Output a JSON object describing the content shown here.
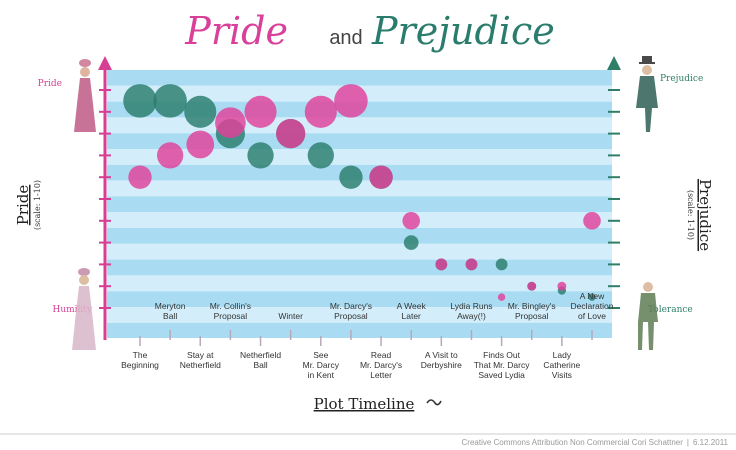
{
  "title": {
    "word1": "Pride",
    "connector": "and",
    "word2": "Prejudice"
  },
  "axes": {
    "left_label": "Pride",
    "left_sublabel": "(scale: 1-10)",
    "right_label": "Prejudice",
    "right_sublabel": "(scale: 1-10)",
    "left_top": "Pride",
    "left_bottom": "Humility",
    "right_top": "Prejudice",
    "right_bottom": "Tolerance",
    "x_label": "Plot Timeline"
  },
  "footer": {
    "credit": "Creative Commons Attribution Non Commercial Cori Schattner",
    "separator": "|",
    "date": "6.12.2011"
  },
  "colors": {
    "pride": "#e0409a",
    "prejudice": "#2a7d6c",
    "band_dark": "#a9dcf3",
    "band_light": "#d3eefa",
    "axis_left": "#d63f94",
    "axis_right": "#2f7f68"
  },
  "chart_data": {
    "type": "scatter",
    "title": "Pride and Prejudice",
    "xlabel": "Plot Timeline",
    "ylabel_left": "Pride (scale: 1-10)",
    "ylabel_right": "Prejudice (scale: 1-10)",
    "ylim": [
      0,
      10
    ],
    "legend": "none",
    "categories": [
      {
        "label": [
          "The",
          "Beginning"
        ],
        "row": "bottom"
      },
      {
        "label": [
          "Meryton",
          "Ball"
        ],
        "row": "top"
      },
      {
        "label": [
          "Stay at",
          "Netherfield"
        ],
        "row": "bottom"
      },
      {
        "label": [
          "Mr. Collin's",
          "Proposal"
        ],
        "row": "top"
      },
      {
        "label": [
          "Netherfield",
          "Ball"
        ],
        "row": "bottom"
      },
      {
        "label": [
          "Winter"
        ],
        "row": "top"
      },
      {
        "label": [
          "See",
          "Mr. Darcy",
          "in Kent"
        ],
        "row": "bottom"
      },
      {
        "label": [
          "Mr. Darcy's",
          "Proposal"
        ],
        "row": "top"
      },
      {
        "label": [
          "Read",
          "Mr. Darcy's",
          "Letter"
        ],
        "row": "bottom"
      },
      {
        "label": [
          "A Week",
          "Later"
        ],
        "row": "top"
      },
      {
        "label": [
          "A Visit to",
          "Derbyshire"
        ],
        "row": "bottom"
      },
      {
        "label": [
          "Lydia Runs",
          "Away(!)"
        ],
        "row": "top"
      },
      {
        "label": [
          "Finds Out",
          "That Mr. Darcy",
          "Saved Lydia"
        ],
        "row": "bottom"
      },
      {
        "label": [
          "Mr. Bingley's",
          "Proposal"
        ],
        "row": "top"
      },
      {
        "label": [
          "Lady",
          "Catherine",
          "Visits"
        ],
        "row": "bottom"
      },
      {
        "label": [
          "A New",
          "Declaration",
          "of Love"
        ],
        "row": "top"
      }
    ],
    "series": [
      {
        "name": "Pride",
        "color": "#e0409a",
        "values": [
          6,
          7,
          7.5,
          8.5,
          9,
          8,
          9,
          9.5,
          6,
          4,
          2,
          2,
          0.5,
          1,
          1,
          4
        ]
      },
      {
        "name": "Prejudice",
        "color": "#2a7d6c",
        "values": [
          9.5,
          9.5,
          9,
          8,
          7,
          8,
          7,
          6,
          6,
          3,
          2,
          2,
          2,
          1,
          0.8,
          0.5
        ]
      }
    ]
  }
}
